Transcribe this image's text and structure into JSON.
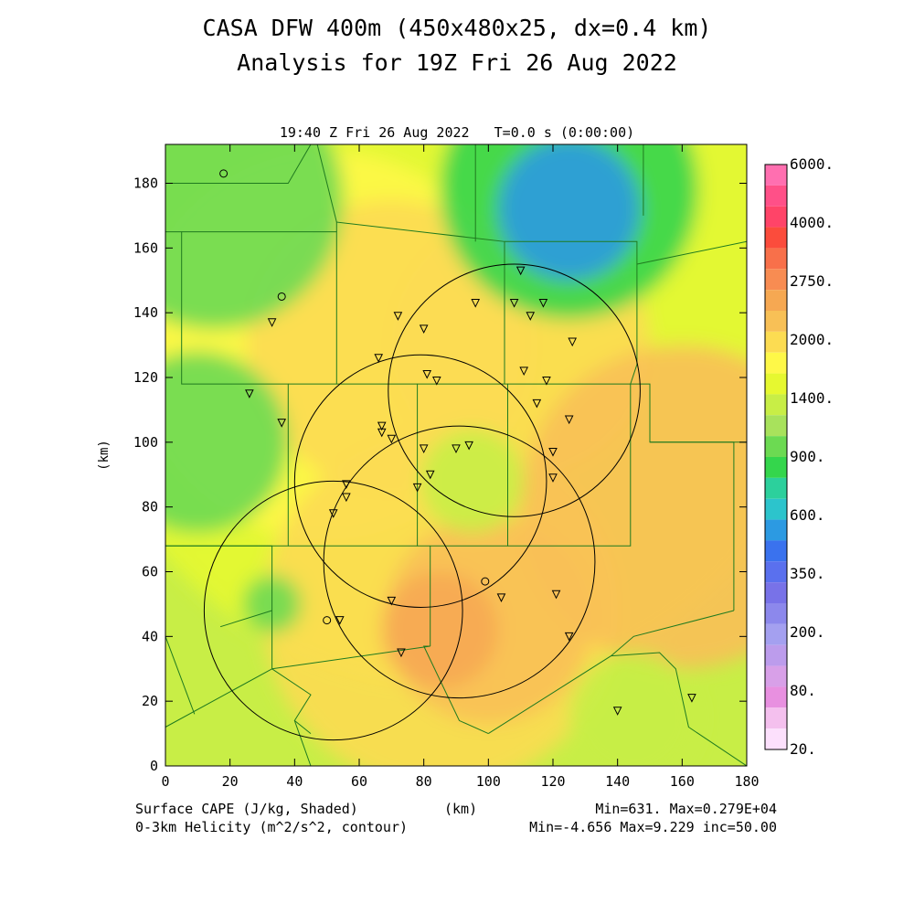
{
  "chart_data": {
    "type": "heatmap",
    "title": "CASA DFW 400m (450x480x25, dx=0.4 km)",
    "subtitle": "Analysis for 19Z Fri 26 Aug 2022",
    "time_label": "19:40 Z Fri 26 Aug 2022   T=0.0 s (0:00:00)",
    "xlabel": "(km)",
    "ylabel": "(km)",
    "xlim": [
      0,
      180
    ],
    "ylim": [
      0,
      192
    ],
    "x_ticks": [
      0,
      20,
      40,
      60,
      80,
      100,
      120,
      140,
      160,
      180
    ],
    "y_ticks": [
      0,
      20,
      40,
      60,
      80,
      100,
      120,
      140,
      160,
      180
    ],
    "field_label": "Surface CAPE (J/kg, Shaded)",
    "contour_label": "0-3km Helicity (m^2/s^2, contour)",
    "field_stats": "Min=631. Max=0.279E+04",
    "contour_stats": "Min=-4.656 Max=9.229 inc=50.00",
    "colorbar_labels": [
      "6000.",
      "4000.",
      "2750.",
      "2000.",
      "1400.",
      "900.",
      "600.",
      "350.",
      "200.",
      "80.",
      "20."
    ],
    "colorbar_colors": [
      "#ff6fb0",
      "#ff5088",
      "#ff4468",
      "#fb4c3c",
      "#f8704a",
      "#f88c52",
      "#f6a852",
      "#f8c056",
      "#fcdc52",
      "#fef848",
      "#e6f830",
      "#c8ee46",
      "#a8e25c",
      "#6cda52",
      "#34d64c",
      "#2cd09c",
      "#2cc4cc",
      "#2c9ae2",
      "#3a72ee",
      "#5a70ee",
      "#7872e8",
      "#8c88ec",
      "#a4a0f0",
      "#bc9cec",
      "#d8a0e8",
      "#e890e0",
      "#f4c0ee",
      "#fce0fc"
    ],
    "cape_blobs": [
      {
        "x": 90,
        "y": 144,
        "r": 120,
        "value": 1700
      },
      {
        "x": 50,
        "y": 130,
        "r": 60,
        "value": 1900
      },
      {
        "x": 70,
        "y": 130,
        "r": 45,
        "value": 2050
      },
      {
        "x": 110,
        "y": 130,
        "r": 40,
        "value": 2050
      },
      {
        "x": 85,
        "y": 48,
        "r": 55,
        "value": 2150
      },
      {
        "x": 100,
        "y": 45,
        "r": 32,
        "value": 2400
      },
      {
        "x": 85,
        "y": 42,
        "r": 18,
        "value": 2650
      },
      {
        "x": 160,
        "y": 80,
        "r": 50,
        "value": 2300
      },
      {
        "x": 95,
        "y": 88,
        "r": 16,
        "value": 1550
      },
      {
        "x": 10,
        "y": 100,
        "r": 28,
        "value": 1150
      },
      {
        "x": 33,
        "y": 50,
        "r": 9,
        "value": 1100
      },
      {
        "x": 15,
        "y": 175,
        "r": 40,
        "value": 1050
      },
      {
        "x": 125,
        "y": 178,
        "r": 40,
        "value": 950
      },
      {
        "x": 125,
        "y": 172,
        "r": 22,
        "value": 650
      },
      {
        "x": 145,
        "y": 15,
        "r": 20,
        "value": 1500
      }
    ],
    "helicity_circles": [
      {
        "x": 108,
        "y": 116,
        "r": 39
      },
      {
        "x": 79,
        "y": 88,
        "r": 39
      },
      {
        "x": 52,
        "y": 48,
        "r": 40
      },
      {
        "x": 91,
        "y": 63,
        "r": 42
      }
    ],
    "stations_triangle": [
      [
        110,
        153
      ],
      [
        108,
        143
      ],
      [
        96,
        143
      ],
      [
        117,
        143
      ],
      [
        113,
        139
      ],
      [
        72,
        139
      ],
      [
        80,
        135
      ],
      [
        126,
        131
      ],
      [
        66,
        126
      ],
      [
        81,
        121
      ],
      [
        84,
        119
      ],
      [
        111,
        122
      ],
      [
        118,
        119
      ],
      [
        115,
        112
      ],
      [
        26,
        115
      ],
      [
        36,
        106
      ],
      [
        67,
        105
      ],
      [
        67,
        103
      ],
      [
        70,
        101
      ],
      [
        80,
        98
      ],
      [
        90,
        98
      ],
      [
        94,
        99
      ],
      [
        120,
        97
      ],
      [
        125,
        107
      ],
      [
        56,
        87
      ],
      [
        78,
        86
      ],
      [
        82,
        90
      ],
      [
        56,
        83
      ],
      [
        52,
        78
      ],
      [
        120,
        89
      ],
      [
        121,
        53
      ],
      [
        104,
        52
      ],
      [
        70,
        51
      ],
      [
        54,
        45
      ],
      [
        73,
        35
      ],
      [
        125,
        40
      ],
      [
        140,
        17
      ],
      [
        163,
        21
      ],
      [
        33,
        137
      ]
    ],
    "stations_circle": [
      [
        18,
        183
      ],
      [
        36,
        145
      ],
      [
        99,
        57
      ],
      [
        50,
        45
      ]
    ],
    "county_lines": [
      [
        [
          0,
          165
        ],
        [
          5,
          165
        ],
        [
          5,
          118
        ],
        [
          38,
          118
        ],
        [
          38,
          68
        ],
        [
          0,
          68
        ]
      ],
      [
        [
          5,
          165
        ],
        [
          53,
          165
        ],
        [
          53,
          118
        ]
      ],
      [
        [
          38,
          118
        ],
        [
          78,
          118
        ],
        [
          78,
          68
        ],
        [
          38,
          68
        ]
      ],
      [
        [
          78,
          118
        ],
        [
          106,
          118
        ],
        [
          106,
          68
        ],
        [
          78,
          68
        ]
      ],
      [
        [
          106,
          118
        ],
        [
          144,
          118
        ],
        [
          144,
          68
        ],
        [
          106,
          68
        ]
      ],
      [
        [
          53,
          165
        ],
        [
          53,
          168
        ],
        [
          105,
          162
        ],
        [
          105,
          118
        ]
      ],
      [
        [
          105,
          162
        ],
        [
          146,
          162
        ],
        [
          146,
          124
        ],
        [
          144,
          118
        ],
        [
          150,
          118
        ],
        [
          150,
          100
        ],
        [
          176,
          100
        ],
        [
          176,
          48
        ]
      ],
      [
        [
          146,
          155
        ],
        [
          180,
          162
        ]
      ],
      [
        [
          150,
          100
        ],
        [
          180,
          100
        ]
      ],
      [
        [
          0,
          68
        ],
        [
          33,
          68
        ],
        [
          33,
          30
        ],
        [
          0,
          12
        ]
      ],
      [
        [
          0,
          40
        ],
        [
          9,
          16
        ]
      ],
      [
        [
          33,
          48
        ],
        [
          17,
          43
        ]
      ],
      [
        [
          33,
          30
        ],
        [
          45,
          22
        ],
        [
          40,
          14
        ],
        [
          45,
          10
        ]
      ],
      [
        [
          33,
          30
        ],
        [
          82,
          37
        ],
        [
          80,
          37
        ],
        [
          91,
          14
        ],
        [
          100,
          10
        ]
      ],
      [
        [
          82,
          68
        ],
        [
          82,
          37
        ]
      ],
      [
        [
          100,
          10
        ],
        [
          138,
          34
        ],
        [
          145,
          40
        ],
        [
          176,
          48
        ]
      ],
      [
        [
          138,
          34
        ],
        [
          153,
          35
        ],
        [
          158,
          30
        ],
        [
          162,
          12
        ],
        [
          180,
          0
        ]
      ],
      [
        [
          45,
          0
        ],
        [
          40,
          14
        ]
      ],
      [
        [
          0,
          165
        ],
        [
          0,
          180
        ],
        [
          38,
          180
        ],
        [
          45,
          192
        ]
      ],
      [
        [
          47,
          192
        ],
        [
          53,
          168
        ]
      ],
      [
        [
          96,
          192
        ],
        [
          96,
          162
        ]
      ],
      [
        [
          148,
          192
        ],
        [
          148,
          170
        ]
      ]
    ]
  }
}
